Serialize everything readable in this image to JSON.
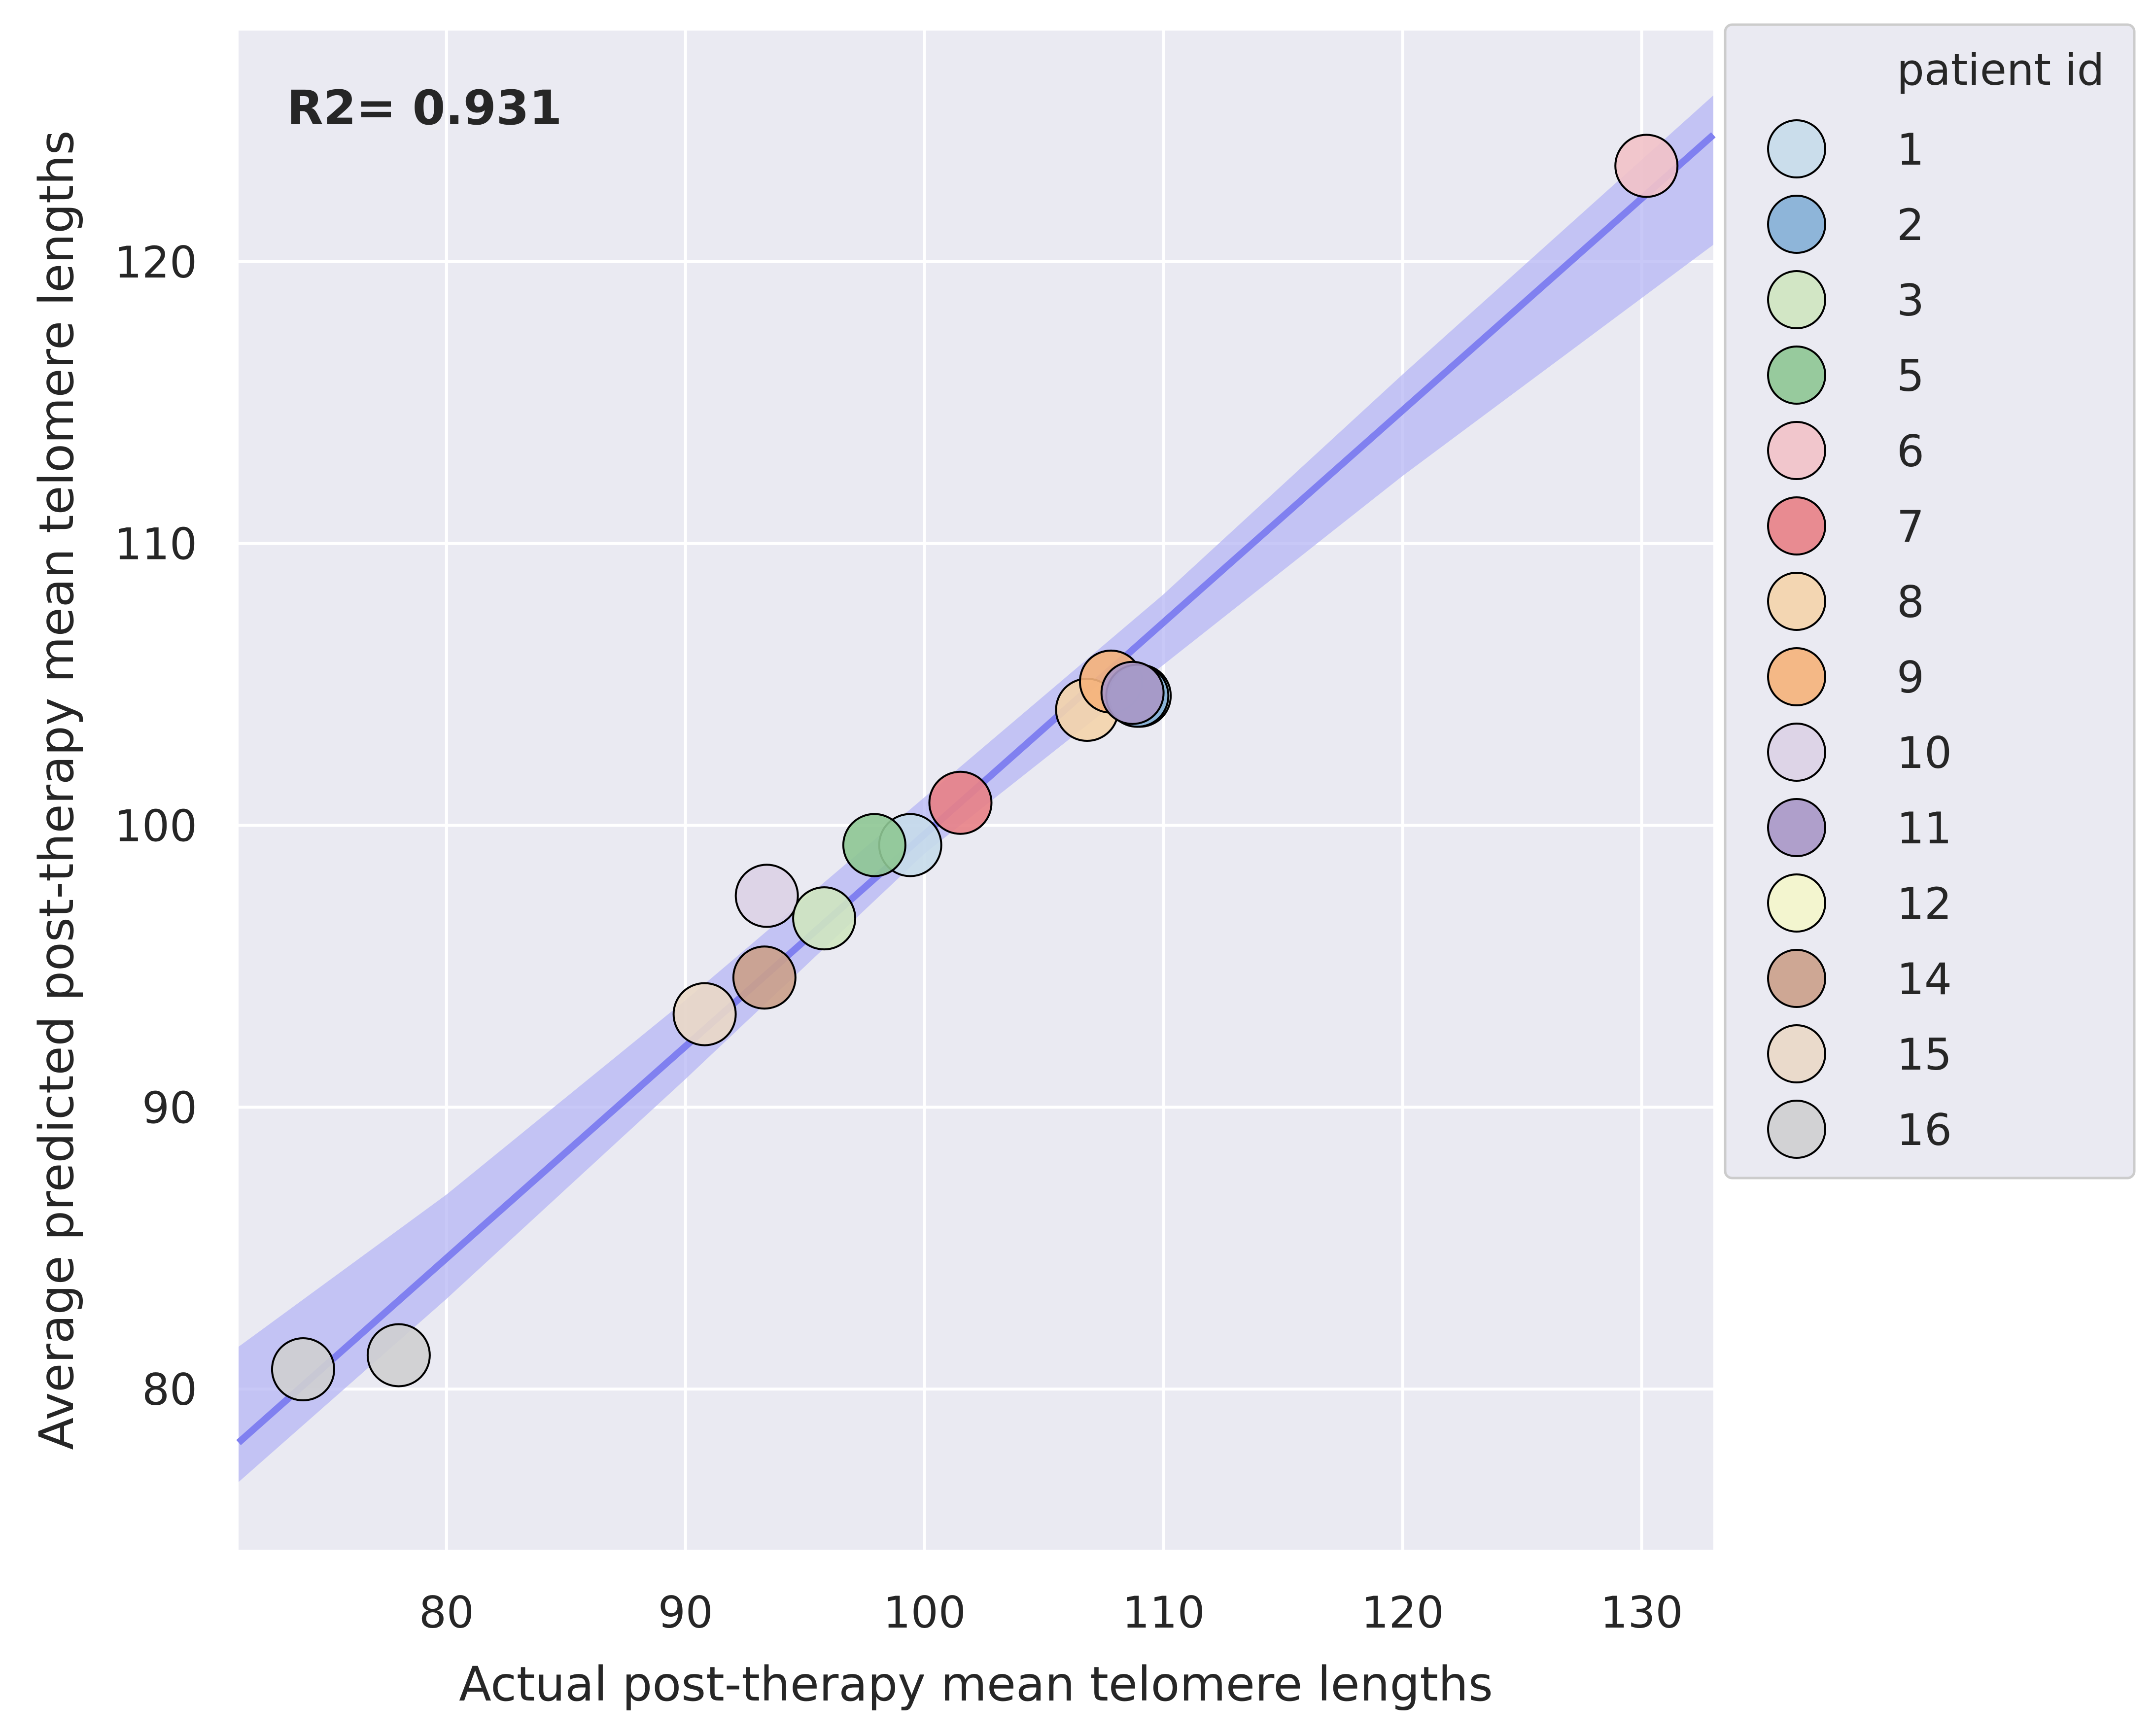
{
  "chart_data": {
    "type": "scatter",
    "title": "",
    "xlabel": "Actual post-therapy mean telomere lengths",
    "ylabel": "Average predicted post-therapy mean telomere lengths",
    "xlim": [
      71.3,
      133
    ],
    "ylim": [
      74.3,
      128.2
    ],
    "xticks": [
      80,
      90,
      100,
      110,
      120,
      130
    ],
    "yticks": [
      80,
      90,
      100,
      110,
      120
    ],
    "grid": true,
    "annotation": "R2= 0.931",
    "legend": {
      "title": "patient id",
      "placement": "outside-right",
      "entries": [
        {
          "label": "1",
          "color": "#c6dbea"
        },
        {
          "label": "2",
          "color": "#84afd6"
        },
        {
          "label": "3",
          "color": "#cfe6c0"
        },
        {
          "label": "5",
          "color": "#8ec793"
        },
        {
          "label": "6",
          "color": "#f2c2c8"
        },
        {
          "label": "7",
          "color": "#e88186"
        },
        {
          "label": "8",
          "color": "#f4d4ab"
        },
        {
          "label": "9",
          "color": "#f5b27a"
        },
        {
          "label": "10",
          "color": "#dcd2e6"
        },
        {
          "label": "11",
          "color": "#a897c7"
        },
        {
          "label": "12",
          "color": "#f4f6cb"
        },
        {
          "label": "14",
          "color": "#cba08a"
        },
        {
          "label": "15",
          "color": "#ead8c6"
        },
        {
          "label": "16",
          "color": "#cfcfd0"
        }
      ]
    },
    "points": [
      {
        "id": "16",
        "x": 74.0,
        "y": 80.7
      },
      {
        "id": "16",
        "x": 78.0,
        "y": 81.2
      },
      {
        "id": "15",
        "x": 90.8,
        "y": 93.3
      },
      {
        "id": "14",
        "x": 93.3,
        "y": 94.6
      },
      {
        "id": "10",
        "x": 93.4,
        "y": 97.5
      },
      {
        "id": "3",
        "x": 95.8,
        "y": 96.7
      },
      {
        "id": "1",
        "x": 99.4,
        "y": 99.3
      },
      {
        "id": "5",
        "x": 97.9,
        "y": 99.3
      },
      {
        "id": "7",
        "x": 101.5,
        "y": 100.8
      },
      {
        "id": "8",
        "x": 106.8,
        "y": 104.1
      },
      {
        "id": "9",
        "x": 107.8,
        "y": 105.1
      },
      {
        "id": "1",
        "x": 109.0,
        "y": 104.6
      },
      {
        "id": "2",
        "x": 108.9,
        "y": 104.6
      },
      {
        "id": "11",
        "x": 108.7,
        "y": 104.7
      },
      {
        "id": "6",
        "x": 130.2,
        "y": 123.4
      }
    ],
    "regression": {
      "color": "#8080f0",
      "ci_color": "#b6b6f4",
      "line": [
        [
          71.3,
          78.1
        ],
        [
          133,
          124.5
        ]
      ],
      "ci_upper": [
        [
          71.3,
          81.5
        ],
        [
          80,
          86.9
        ],
        [
          90,
          93.8
        ],
        [
          100,
          101.0
        ],
        [
          110,
          108.2
        ],
        [
          120,
          116.0
        ],
        [
          133,
          125.9
        ]
      ],
      "ci_lower": [
        [
          71.3,
          76.7
        ],
        [
          80,
          83.2
        ],
        [
          90,
          91.0
        ],
        [
          100,
          99.0
        ],
        [
          110,
          105.7
        ],
        [
          120,
          112.4
        ],
        [
          133,
          120.6
        ]
      ]
    }
  }
}
